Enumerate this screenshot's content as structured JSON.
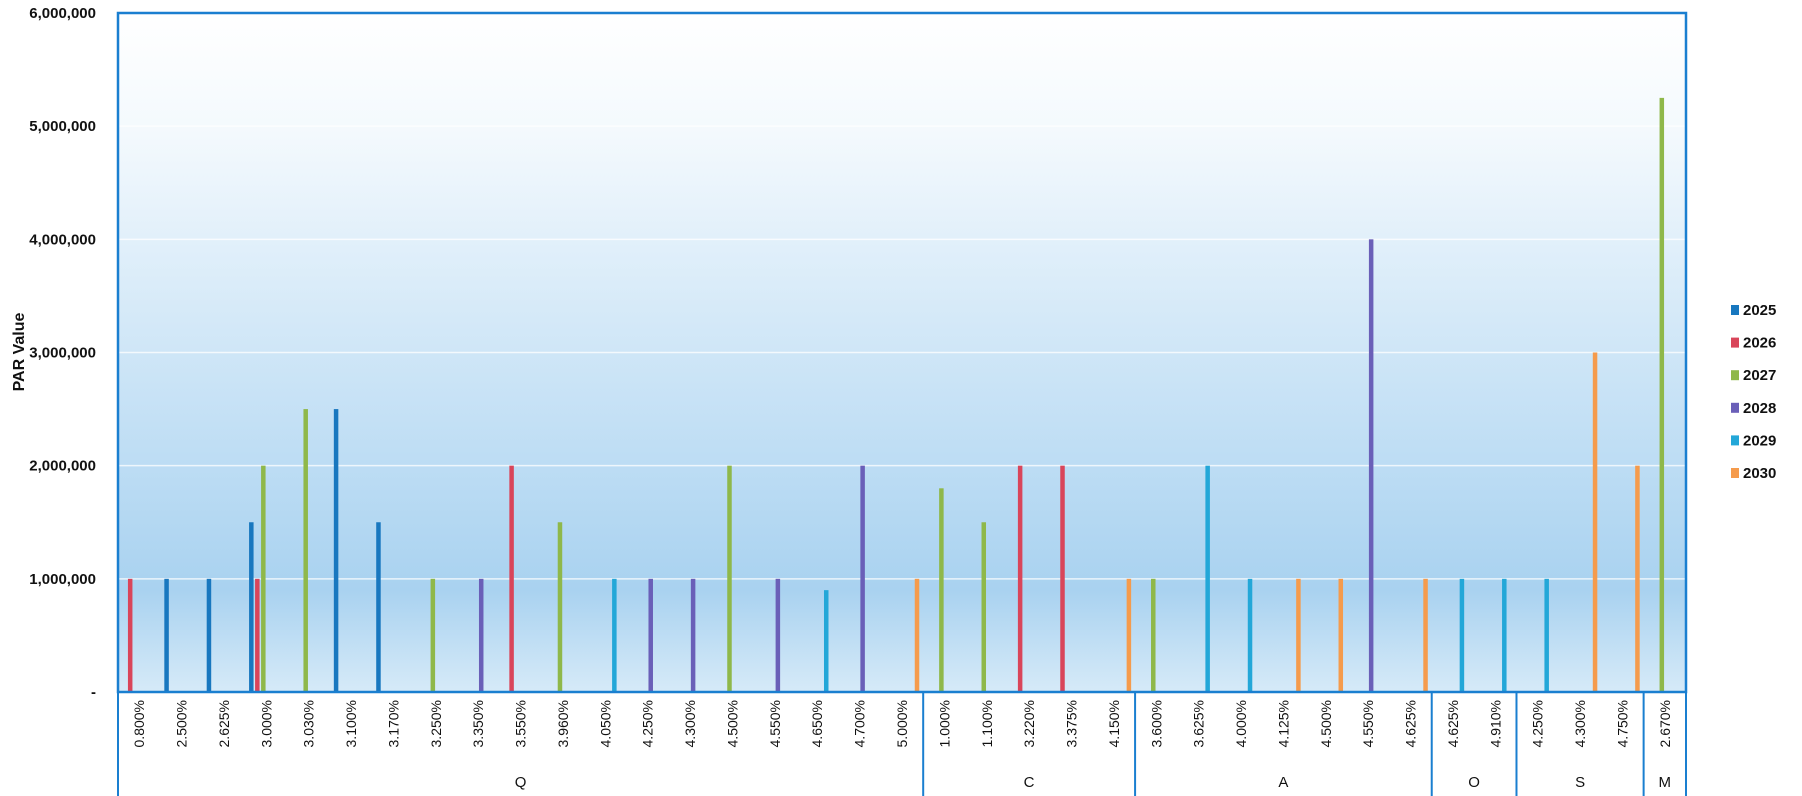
{
  "chart_data": {
    "type": "bar",
    "ylabel": "PAR Value",
    "ylim": [
      0,
      6000000
    ],
    "y_ticks": [
      "-",
      "1,000,000",
      "2,000,000",
      "3,000,000",
      "4,000,000",
      "5,000,000",
      "6,000,000"
    ],
    "grid": true,
    "legend_position": "right",
    "background": "blue gradient",
    "series": [
      {
        "name": "2025",
        "color": "#1877bf"
      },
      {
        "name": "2026",
        "color": "#d9455a"
      },
      {
        "name": "2027",
        "color": "#8fb84a"
      },
      {
        "name": "2028",
        "color": "#6a5fb8"
      },
      {
        "name": "2029",
        "color": "#23a7d8"
      },
      {
        "name": "2030",
        "color": "#f59b4c"
      }
    ],
    "groups": [
      {
        "name": "Q",
        "categories": [
          "0.800%",
          "2.500%",
          "2.625%",
          "3.000%",
          "3.030%",
          "3.100%",
          "3.170%",
          "3.250%",
          "3.350%",
          "3.550%",
          "3.960%",
          "4.050%",
          "4.250%",
          "4.300%",
          "4.500%",
          "4.550%",
          "4.650%",
          "4.700%",
          "5.000%"
        ]
      },
      {
        "name": "C",
        "categories": [
          "1.000%",
          "1.100%",
          "3.220%",
          "3.375%",
          "4.150%"
        ]
      },
      {
        "name": "A",
        "categories": [
          "3.600%",
          "3.625%",
          "4.000%",
          "4.125%",
          "4.500%",
          "4.550%",
          "4.625%"
        ]
      },
      {
        "name": "O",
        "categories": [
          "4.625%",
          "4.910%"
        ]
      },
      {
        "name": "S",
        "categories": [
          "4.250%",
          "4.300%",
          "4.750%"
        ]
      },
      {
        "name": "M",
        "categories": [
          "2.670%"
        ]
      }
    ],
    "points": [
      {
        "category": 0,
        "series": 1,
        "value": 1000000
      },
      {
        "category": 1,
        "series": 0,
        "value": 1000000
      },
      {
        "category": 2,
        "series": 0,
        "value": 1000000
      },
      {
        "category": 3,
        "series": 0,
        "value": 1500000
      },
      {
        "category": 3,
        "series": 1,
        "value": 1000000
      },
      {
        "category": 3,
        "series": 2,
        "value": 2000000
      },
      {
        "category": 4,
        "series": 2,
        "value": 2500000
      },
      {
        "category": 5,
        "series": 0,
        "value": 2500000
      },
      {
        "category": 6,
        "series": 0,
        "value": 1500000
      },
      {
        "category": 7,
        "series": 2,
        "value": 1000000
      },
      {
        "category": 8,
        "series": 3,
        "value": 1000000
      },
      {
        "category": 9,
        "series": 1,
        "value": 2000000
      },
      {
        "category": 10,
        "series": 2,
        "value": 1500000
      },
      {
        "category": 11,
        "series": 4,
        "value": 1000000
      },
      {
        "category": 12,
        "series": 3,
        "value": 1000000
      },
      {
        "category": 13,
        "series": 3,
        "value": 1000000
      },
      {
        "category": 14,
        "series": 2,
        "value": 2000000
      },
      {
        "category": 15,
        "series": 3,
        "value": 1000000
      },
      {
        "category": 16,
        "series": 4,
        "value": 900000
      },
      {
        "category": 17,
        "series": 3,
        "value": 2000000
      },
      {
        "category": 18,
        "series": 5,
        "value": 1000000
      },
      {
        "category": 19,
        "series": 2,
        "value": 1800000
      },
      {
        "category": 20,
        "series": 2,
        "value": 1500000
      },
      {
        "category": 21,
        "series": 1,
        "value": 2000000
      },
      {
        "category": 22,
        "series": 1,
        "value": 2000000
      },
      {
        "category": 23,
        "series": 5,
        "value": 1000000
      },
      {
        "category": 24,
        "series": 2,
        "value": 1000000
      },
      {
        "category": 25,
        "series": 4,
        "value": 2000000
      },
      {
        "category": 26,
        "series": 4,
        "value": 1000000
      },
      {
        "category": 27,
        "series": 5,
        "value": 1000000
      },
      {
        "category": 28,
        "series": 5,
        "value": 1000000
      },
      {
        "category": 29,
        "series": 3,
        "value": 4000000
      },
      {
        "category": 30,
        "series": 5,
        "value": 1000000
      },
      {
        "category": 31,
        "series": 4,
        "value": 1000000
      },
      {
        "category": 32,
        "series": 4,
        "value": 1000000
      },
      {
        "category": 33,
        "series": 4,
        "value": 1000000
      },
      {
        "category": 34,
        "series": 5,
        "value": 3000000
      },
      {
        "category": 35,
        "series": 5,
        "value": 2000000
      },
      {
        "category": 36,
        "series": 2,
        "value": 5250000
      }
    ]
  }
}
